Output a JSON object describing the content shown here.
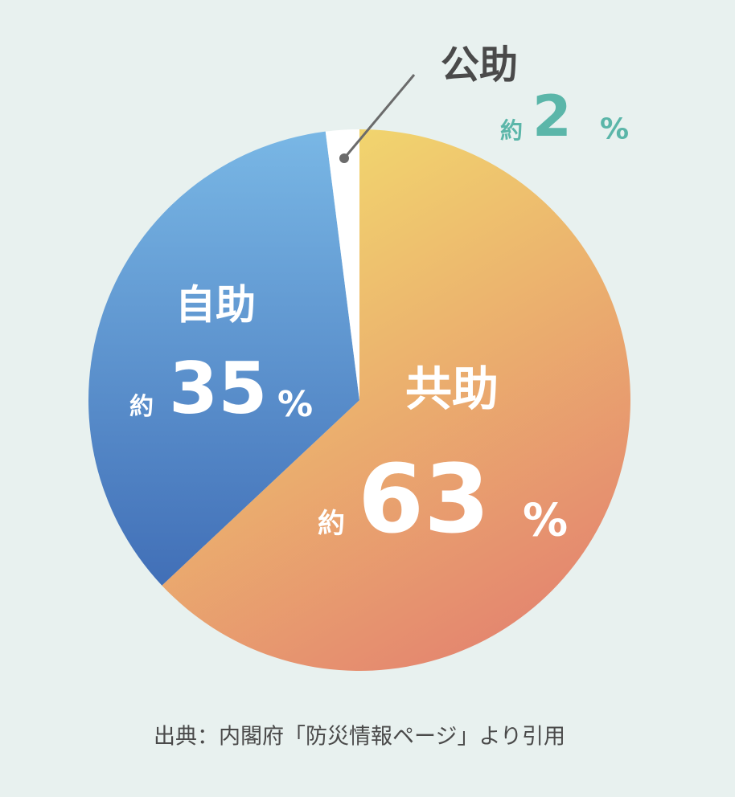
{
  "chart_data": {
    "type": "pie",
    "categories": [
      "共助",
      "自助",
      "公助"
    ],
    "values": [
      63,
      35,
      2
    ],
    "value_prefix": "約",
    "value_unit": "%",
    "gradient_colors": [
      [
        "#f2d96e",
        "#e3806f"
      ],
      [
        "#79b7e5",
        "#416fb7"
      ],
      [
        "#ffffff",
        "#ffffff"
      ]
    ],
    "source": "出典：内閣府「防災情報ページ」より引用"
  }
}
